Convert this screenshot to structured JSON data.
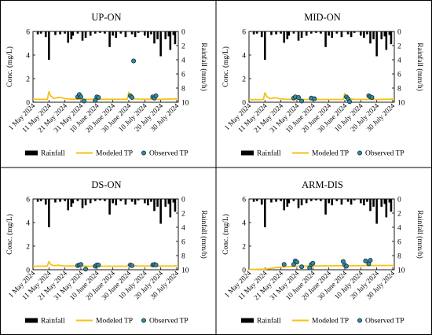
{
  "colors": {
    "rainfall": "#000000",
    "modeled": "#f5c216",
    "observed_fill": "#2e8f9a",
    "observed_stroke": "#1f2a44",
    "frame": "#000000"
  },
  "chart_data": [
    {
      "type": "line",
      "title": "UP-ON",
      "ylabel": "Conc. (mg/L)",
      "y2label": "Rainfall (mm/h)",
      "ylim": [
        0,
        6
      ],
      "y2lim": [
        10,
        0
      ],
      "yticks": [
        "0",
        "2",
        "4",
        "6"
      ],
      "y2ticks": [
        "0",
        "2",
        "4",
        "6",
        "8",
        "10"
      ],
      "xrange": [
        "2024-05-01",
        "2024-07-31"
      ],
      "xticks": [
        "1 May 2024",
        "11 May 2024",
        "21 May 2024",
        "31 May 2024",
        "10 June 2024",
        "20 June 2024",
        "30 June 2024",
        "10 July 2024",
        "20 July 2024",
        "30 July 2024"
      ],
      "legend": [
        "Rainfall",
        "Modeled TP",
        "Observed TP"
      ],
      "rainfall": [
        [
          3,
          0.4
        ],
        [
          5,
          0.3
        ],
        [
          8,
          0.8
        ],
        [
          10,
          4
        ],
        [
          14,
          0.5
        ],
        [
          17,
          0.4
        ],
        [
          20,
          0.3
        ],
        [
          22,
          1.6
        ],
        [
          24,
          1.1
        ],
        [
          25,
          0.6
        ],
        [
          28,
          0.3
        ],
        [
          31,
          1.3
        ],
        [
          33,
          0.9
        ],
        [
          36,
          0.6
        ],
        [
          39,
          0.3
        ],
        [
          42,
          0.2
        ],
        [
          45,
          0.3
        ],
        [
          48,
          2.2
        ],
        [
          50,
          0.6
        ],
        [
          52,
          0.9
        ],
        [
          55,
          0.3
        ],
        [
          58,
          0.8
        ],
        [
          62,
          0.4
        ],
        [
          64,
          0.8
        ],
        [
          66,
          0.2
        ],
        [
          70,
          0.6
        ],
        [
          72,
          0.9
        ],
        [
          74,
          0.4
        ],
        [
          76,
          1.7
        ],
        [
          78,
          1.1
        ],
        [
          80,
          3.5
        ],
        [
          83,
          1.1
        ],
        [
          85,
          0.7
        ],
        [
          86,
          2.6
        ],
        [
          88,
          0.5
        ],
        [
          89,
          1.8
        ]
      ],
      "modeled": [
        [
          0,
          0.25
        ],
        [
          6,
          0.24
        ],
        [
          9,
          0.25
        ],
        [
          10,
          0.9
        ],
        [
          11,
          0.55
        ],
        [
          13,
          0.32
        ],
        [
          15,
          0.38
        ],
        [
          17,
          0.42
        ],
        [
          19,
          0.33
        ],
        [
          22,
          0.28
        ],
        [
          26,
          0.26
        ],
        [
          30,
          0.25
        ],
        [
          40,
          0.25
        ],
        [
          50,
          0.25
        ],
        [
          59,
          0.25
        ],
        [
          60,
          0.85
        ],
        [
          61,
          0.45
        ],
        [
          63,
          0.3
        ],
        [
          66,
          0.27
        ],
        [
          70,
          0.26
        ],
        [
          80,
          0.25
        ],
        [
          85,
          0.27
        ],
        [
          88,
          0.28
        ],
        [
          91,
          0.29
        ]
      ],
      "observed": [
        [
          28,
          0.45
        ],
        [
          29,
          0.65
        ],
        [
          30,
          0.45
        ],
        [
          32,
          0.1
        ],
        [
          39,
          0.15
        ],
        [
          40,
          0.45
        ],
        [
          41,
          0.4
        ],
        [
          61,
          0.55
        ],
        [
          62,
          0.4
        ],
        [
          63,
          3.5
        ],
        [
          75,
          0.45
        ],
        [
          76,
          0.35
        ],
        [
          77,
          0.55
        ]
      ]
    },
    {
      "type": "line",
      "title": "MID-ON",
      "ylabel": "Conc. (mg/L)",
      "y2label": "Rainfall (mm/h)",
      "ylim": [
        0,
        6
      ],
      "y2lim": [
        10,
        0
      ],
      "yticks": [
        "0",
        "2",
        "4",
        "6"
      ],
      "y2ticks": [
        "0",
        "2",
        "4",
        "6",
        "8",
        "10"
      ],
      "xrange": [
        "2024-05-01",
        "2024-07-31"
      ],
      "xticks": [
        "1 May 2024",
        "11 May 2024",
        "21 May 2024",
        "31 May 2024",
        "10 June 2024",
        "20 June 2024",
        "30 June 2024",
        "10 July 2024",
        "20 July 2024",
        "30 July 2024"
      ],
      "legend": [
        "Rainfall",
        "Modeled TP",
        "Observed TP"
      ],
      "rainfall": [
        [
          3,
          0.4
        ],
        [
          5,
          0.3
        ],
        [
          8,
          0.8
        ],
        [
          10,
          4
        ],
        [
          14,
          0.5
        ],
        [
          17,
          0.4
        ],
        [
          20,
          0.3
        ],
        [
          22,
          1.6
        ],
        [
          24,
          1.1
        ],
        [
          25,
          0.6
        ],
        [
          28,
          0.3
        ],
        [
          31,
          1.3
        ],
        [
          33,
          0.9
        ],
        [
          36,
          0.6
        ],
        [
          39,
          0.3
        ],
        [
          42,
          0.2
        ],
        [
          45,
          0.3
        ],
        [
          48,
          2.2
        ],
        [
          50,
          0.6
        ],
        [
          52,
          0.9
        ],
        [
          55,
          0.3
        ],
        [
          58,
          0.8
        ],
        [
          62,
          0.4
        ],
        [
          64,
          0.8
        ],
        [
          66,
          0.2
        ],
        [
          70,
          0.6
        ],
        [
          72,
          0.9
        ],
        [
          74,
          0.4
        ],
        [
          76,
          1.7
        ],
        [
          78,
          1.1
        ],
        [
          80,
          3.5
        ],
        [
          83,
          1.1
        ],
        [
          85,
          0.7
        ],
        [
          86,
          2.6
        ],
        [
          88,
          0.5
        ],
        [
          89,
          1.8
        ]
      ],
      "modeled": [
        [
          0,
          0.22
        ],
        [
          6,
          0.22
        ],
        [
          9,
          0.23
        ],
        [
          10,
          0.8
        ],
        [
          11,
          0.5
        ],
        [
          13,
          0.3
        ],
        [
          15,
          0.35
        ],
        [
          17,
          0.38
        ],
        [
          19,
          0.3
        ],
        [
          22,
          0.26
        ],
        [
          26,
          0.24
        ],
        [
          30,
          0.23
        ],
        [
          40,
          0.23
        ],
        [
          50,
          0.23
        ],
        [
          59,
          0.23
        ],
        [
          60,
          0.75
        ],
        [
          61,
          0.42
        ],
        [
          63,
          0.28
        ],
        [
          66,
          0.25
        ],
        [
          70,
          0.24
        ],
        [
          80,
          0.23
        ],
        [
          85,
          0.25
        ],
        [
          88,
          0.26
        ],
        [
          91,
          0.27
        ]
      ],
      "observed": [
        [
          28,
          0.35
        ],
        [
          29,
          0.45
        ],
        [
          31,
          0.4
        ],
        [
          33,
          0.1
        ],
        [
          39,
          0.35
        ],
        [
          41,
          0.3
        ],
        [
          61,
          0.45
        ],
        [
          62,
          0.3
        ],
        [
          63,
          0.05
        ],
        [
          75,
          0.55
        ],
        [
          76,
          0.45
        ],
        [
          77,
          0.4
        ]
      ]
    },
    {
      "type": "line",
      "title": "DS-ON",
      "ylabel": "Conc. (mg/L)",
      "y2label": "Rainfall (mm/h)",
      "ylim": [
        0,
        6
      ],
      "y2lim": [
        10,
        0
      ],
      "yticks": [
        "0",
        "2",
        "4",
        "6"
      ],
      "y2ticks": [
        "0",
        "2",
        "4",
        "6",
        "8",
        "10"
      ],
      "xrange": [
        "2024-05-01",
        "2024-07-31"
      ],
      "xticks": [
        "1 May 2024",
        "11 May 2024",
        "21 May 2024",
        "31 May 2024",
        "10 June 2024",
        "20 June 2024",
        "30 June 2024",
        "10 July 2024",
        "20 July 2024",
        "30 July 2024"
      ],
      "legend": [
        "Rainfall",
        "Modeled TP",
        "Observed TP"
      ],
      "rainfall": [
        [
          3,
          0.4
        ],
        [
          5,
          0.3
        ],
        [
          8,
          0.8
        ],
        [
          10,
          4
        ],
        [
          14,
          0.5
        ],
        [
          17,
          0.4
        ],
        [
          20,
          0.3
        ],
        [
          22,
          1.6
        ],
        [
          24,
          1.1
        ],
        [
          25,
          0.6
        ],
        [
          28,
          0.3
        ],
        [
          31,
          1.3
        ],
        [
          33,
          0.9
        ],
        [
          36,
          0.6
        ],
        [
          39,
          0.3
        ],
        [
          42,
          0.2
        ],
        [
          45,
          0.3
        ],
        [
          48,
          2.2
        ],
        [
          50,
          0.6
        ],
        [
          52,
          0.9
        ],
        [
          55,
          0.3
        ],
        [
          58,
          0.8
        ],
        [
          62,
          0.4
        ],
        [
          64,
          0.8
        ],
        [
          66,
          0.2
        ],
        [
          70,
          0.6
        ],
        [
          72,
          0.9
        ],
        [
          74,
          0.4
        ],
        [
          76,
          1.7
        ],
        [
          78,
          1.1
        ],
        [
          80,
          3.5
        ],
        [
          83,
          1.1
        ],
        [
          85,
          0.7
        ],
        [
          86,
          2.6
        ],
        [
          88,
          0.5
        ],
        [
          89,
          1.8
        ]
      ],
      "modeled": [
        [
          0,
          0.3
        ],
        [
          6,
          0.3
        ],
        [
          9,
          0.32
        ],
        [
          10,
          0.7
        ],
        [
          11,
          0.45
        ],
        [
          13,
          0.35
        ],
        [
          16,
          0.38
        ],
        [
          19,
          0.33
        ],
        [
          25,
          0.31
        ],
        [
          40,
          0.3
        ],
        [
          59,
          0.3
        ],
        [
          60,
          0.5
        ],
        [
          61,
          0.38
        ],
        [
          65,
          0.32
        ],
        [
          80,
          0.31
        ],
        [
          88,
          0.32
        ],
        [
          91,
          0.33
        ]
      ],
      "observed": [
        [
          28,
          0.35
        ],
        [
          29,
          0.4
        ],
        [
          30,
          0.45
        ],
        [
          33,
          0.05
        ],
        [
          39,
          0.3
        ],
        [
          40,
          0.4
        ],
        [
          41,
          0.4
        ],
        [
          61,
          0.4
        ],
        [
          62,
          0.35
        ],
        [
          75,
          0.4
        ],
        [
          76,
          0.45
        ],
        [
          77,
          0.4
        ]
      ]
    },
    {
      "type": "line",
      "title": "ARM-DIS",
      "ylabel": "Conc. (mg/L)",
      "y2label": "Rainfall (mm/h)",
      "ylim": [
        0,
        6
      ],
      "y2lim": [
        10,
        0
      ],
      "yticks": [
        "0",
        "2",
        "4",
        "6"
      ],
      "y2ticks": [
        "0",
        "2",
        "4",
        "6",
        "8",
        "10"
      ],
      "xrange": [
        "2024-05-01",
        "2024-07-31"
      ],
      "xticks": [
        "1 May 2024",
        "11 May 2024",
        "21 May 2024",
        "31 May 2024",
        "10 June 2024",
        "20 June 2024",
        "30 June 2024",
        "10 July 2024",
        "20 July 2024",
        "30 July 2024"
      ],
      "legend": [
        "Rainfall",
        "Modeled TP",
        "Observed TP"
      ],
      "rainfall": [
        [
          3,
          0.4
        ],
        [
          5,
          0.3
        ],
        [
          8,
          0.8
        ],
        [
          10,
          4
        ],
        [
          14,
          0.5
        ],
        [
          17,
          0.4
        ],
        [
          20,
          0.3
        ],
        [
          22,
          1.6
        ],
        [
          24,
          1.1
        ],
        [
          25,
          0.6
        ],
        [
          28,
          0.3
        ],
        [
          31,
          1.3
        ],
        [
          33,
          0.9
        ],
        [
          36,
          0.6
        ],
        [
          39,
          0.3
        ],
        [
          42,
          0.2
        ],
        [
          45,
          0.3
        ],
        [
          48,
          2.2
        ],
        [
          50,
          0.6
        ],
        [
          52,
          0.9
        ],
        [
          55,
          0.3
        ],
        [
          58,
          0.8
        ],
        [
          62,
          0.4
        ],
        [
          64,
          0.8
        ],
        [
          66,
          0.2
        ],
        [
          70,
          0.6
        ],
        [
          72,
          0.9
        ],
        [
          74,
          0.4
        ],
        [
          76,
          1.7
        ],
        [
          78,
          1.1
        ],
        [
          80,
          3.5
        ],
        [
          83,
          1.1
        ],
        [
          85,
          0.7
        ],
        [
          86,
          2.6
        ],
        [
          88,
          0.5
        ],
        [
          89,
          1.8
        ]
      ],
      "modeled": [
        [
          0,
          0.02
        ],
        [
          10,
          0.05
        ],
        [
          15,
          0.15
        ],
        [
          20,
          0.22
        ],
        [
          25,
          0.27
        ],
        [
          30,
          0.3
        ],
        [
          40,
          0.32
        ],
        [
          50,
          0.33
        ],
        [
          60,
          0.35
        ],
        [
          70,
          0.35
        ],
        [
          80,
          0.36
        ],
        [
          91,
          0.37
        ]
      ],
      "observed": [
        [
          22,
          0.45
        ],
        [
          28,
          0.45
        ],
        [
          29,
          0.75
        ],
        [
          30,
          0.65
        ],
        [
          33,
          0.25
        ],
        [
          38,
          0.15
        ],
        [
          39,
          0.45
        ],
        [
          40,
          0.55
        ],
        [
          59,
          0.7
        ],
        [
          60,
          0.4
        ],
        [
          61,
          0.3
        ],
        [
          73,
          0.75
        ],
        [
          75,
          0.5
        ],
        [
          76,
          0.8
        ]
      ]
    }
  ]
}
